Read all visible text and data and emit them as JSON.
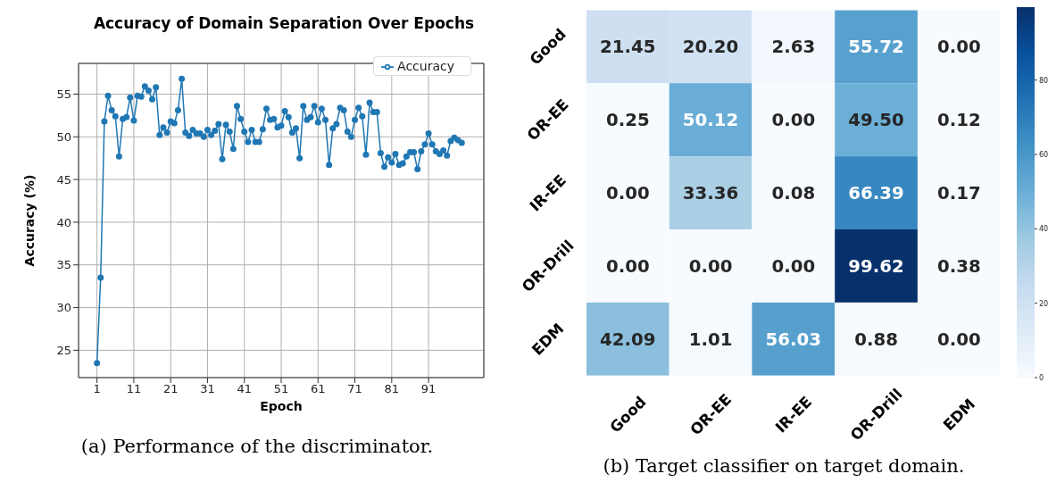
{
  "chart_data": [
    {
      "type": "line",
      "title": "Accuracy of Domain Separation Over Epochs",
      "xlabel": "Epoch",
      "ylabel": "Accuracy (%)",
      "annotations": [
        "(a) Performance of the discriminator."
      ],
      "x": [
        1,
        2,
        3,
        4,
        5,
        6,
        7,
        8,
        9,
        10,
        11,
        12,
        13,
        14,
        15,
        16,
        17,
        18,
        19,
        20,
        21,
        22,
        23,
        24,
        25,
        26,
        27,
        28,
        29,
        30,
        31,
        32,
        33,
        34,
        35,
        36,
        37,
        38,
        39,
        40,
        41,
        42,
        43,
        44,
        45,
        46,
        47,
        48,
        49,
        50,
        51,
        52,
        53,
        54,
        55,
        56,
        57,
        58,
        59,
        60,
        61,
        62,
        63,
        64,
        65,
        66,
        67,
        68,
        69,
        70,
        71,
        72,
        73,
        74,
        75,
        76,
        77,
        78,
        79,
        80,
        81,
        82,
        83,
        84,
        85,
        86,
        87,
        88,
        89,
        90,
        91,
        92,
        93,
        94,
        95,
        96,
        97,
        98,
        99,
        100
      ],
      "series": [
        {
          "name": "Accuracy",
          "color": "#1f77b4",
          "values": [
            23.5,
            33.5,
            51.8,
            54.8,
            53.1,
            52.4,
            47.7,
            52.1,
            52.3,
            54.6,
            51.9,
            54.8,
            54.7,
            55.9,
            55.4,
            54.4,
            55.8,
            50.2,
            51.1,
            50.5,
            51.8,
            51.6,
            53.1,
            56.8,
            50.5,
            50.1,
            50.8,
            50.4,
            50.4,
            50.0,
            50.8,
            50.2,
            50.7,
            51.5,
            47.4,
            51.4,
            50.6,
            48.6,
            53.6,
            52.1,
            50.6,
            49.4,
            50.8,
            49.4,
            49.4,
            50.9,
            53.3,
            52.0,
            52.1,
            51.1,
            51.3,
            53.0,
            52.3,
            50.5,
            51.0,
            47.5,
            53.6,
            52.0,
            52.3,
            53.6,
            51.7,
            53.3,
            52.0,
            46.7,
            51.0,
            51.5,
            53.4,
            53.1,
            50.6,
            50.0,
            52.0,
            53.4,
            52.4,
            47.9,
            54.0,
            52.9,
            52.9,
            48.1,
            46.5,
            47.6,
            47.0,
            48.0,
            46.7,
            46.9,
            47.7,
            48.2,
            48.2,
            46.2,
            48.3,
            49.1,
            50.4,
            49.1,
            48.3,
            48.0,
            48.4,
            47.8,
            49.5,
            49.9,
            49.6,
            49.3
          ]
        }
      ],
      "xlim": [
        -4,
        106
      ],
      "xticks": [
        1,
        11,
        21,
        31,
        41,
        51,
        61,
        71,
        81,
        91
      ],
      "ylim": [
        21.8,
        58.6
      ],
      "yticks": [
        25,
        30,
        35,
        40,
        45,
        50,
        55
      ],
      "grid": true,
      "legend": "top right",
      "marker": "circle",
      "line_style": "solid"
    },
    {
      "type": "heatmap",
      "annotations": [
        "(b) Target classifier on target domain."
      ],
      "categories": [
        "Good",
        "OR-EE",
        "IR-EE",
        "OR-Drill",
        "EDM"
      ],
      "y_categories": [
        "Good",
        "OR-EE",
        "IR-EE",
        "OR-Drill",
        "EDM"
      ],
      "cells": [
        [
          21.45,
          20.2,
          2.63,
          55.72,
          0.0
        ],
        [
          0.25,
          50.12,
          0.0,
          49.5,
          0.12
        ],
        [
          0.0,
          33.36,
          0.08,
          66.39,
          0.17
        ],
        [
          0.0,
          0.0,
          0.0,
          99.62,
          0.38
        ],
        [
          42.09,
          1.01,
          56.03,
          0.88,
          0.0
        ]
      ],
      "cell_labels": [
        [
          "21.45",
          "20.20",
          "2.63",
          "55.72",
          "0.00"
        ],
        [
          "0.25",
          "50.12",
          "0.00",
          "49.50",
          "0.12"
        ],
        [
          "0.00",
          "33.36",
          "0.08",
          "66.39",
          "0.17"
        ],
        [
          "0.00",
          "0.00",
          "0.00",
          "99.62",
          "0.38"
        ],
        [
          "42.09",
          "1.01",
          "56.03",
          "0.88",
          "0.00"
        ]
      ],
      "data_labels": true,
      "clim": [
        0,
        99.62
      ],
      "cticks": [
        0,
        20,
        40,
        60,
        80
      ]
    }
  ]
}
